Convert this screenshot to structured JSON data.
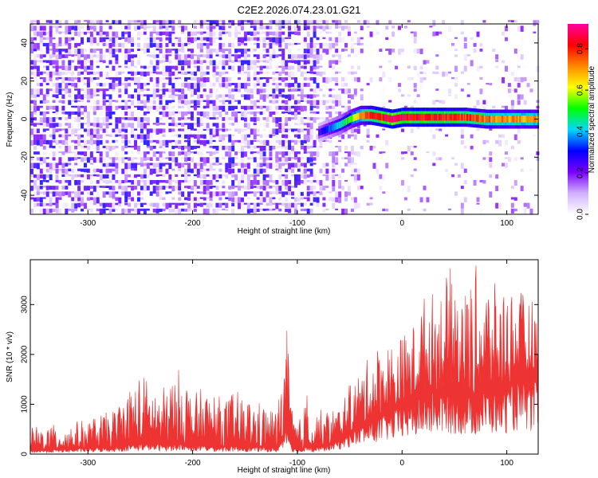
{
  "title": "C2E2.2026.074.23.01.G21",
  "chart_data": [
    {
      "type": "heatmap",
      "xlabel": "Height of straight line (km)",
      "ylabel": "Frequency (Hz)",
      "xlim": [
        -355,
        130
      ],
      "ylim": [
        -50,
        50
      ],
      "x_ticks": [
        -300,
        -200,
        -100,
        0,
        100
      ],
      "y_ticks": [
        -40,
        -20,
        0,
        20,
        40
      ],
      "colorbar": {
        "label": "Normalized spectral amplitude",
        "range": [
          0,
          0.92
        ],
        "ticks": [
          0,
          0.2,
          0.4,
          0.6,
          0.8
        ],
        "colors": [
          "#ffffff",
          "#d0b0ff",
          "#7a00ff",
          "#0000ff",
          "#00d8ff",
          "#00ff00",
          "#ffff00",
          "#ff8800",
          "#ff0000",
          "#ff00a0"
        ]
      },
      "signal_track": [
        {
          "x": -80,
          "y": -7,
          "amp": 0.25
        },
        {
          "x": -70,
          "y": -5,
          "amp": 0.35
        },
        {
          "x": -60,
          "y": -3,
          "amp": 0.45
        },
        {
          "x": -50,
          "y": 0,
          "amp": 0.55
        },
        {
          "x": -40,
          "y": 2,
          "amp": 0.7
        },
        {
          "x": -30,
          "y": 2,
          "amp": 0.8
        },
        {
          "x": -20,
          "y": 1,
          "amp": 0.85
        },
        {
          "x": -10,
          "y": 0,
          "amp": 0.9
        },
        {
          "x": 0,
          "y": 1,
          "amp": 0.88
        },
        {
          "x": 20,
          "y": 1,
          "amp": 0.85
        },
        {
          "x": 40,
          "y": 1,
          "amp": 0.85
        },
        {
          "x": 60,
          "y": 1,
          "amp": 0.8
        },
        {
          "x": 80,
          "y": 0,
          "amp": 0.75
        },
        {
          "x": 100,
          "y": 0,
          "amp": 0.72
        },
        {
          "x": 130,
          "y": 0,
          "amp": 0.7
        }
      ],
      "background_noise_amplitude": 0.3
    },
    {
      "type": "line",
      "xlabel": "Height of straight line (km)",
      "ylabel": "SNR (10 * v/v)",
      "xlim": [
        -355,
        130
      ],
      "ylim": [
        0,
        3900
      ],
      "x_ticks": [
        -300,
        -200,
        -100,
        0,
        100
      ],
      "y_ticks": [
        0,
        1000,
        2000,
        3000
      ],
      "series": [
        {
          "color": "#ee3333",
          "x": [
            -355,
            -330,
            -300,
            -275,
            -260,
            -250,
            -240,
            -230,
            -220,
            -210,
            -200,
            -190,
            -180,
            -170,
            -160,
            -150,
            -140,
            -130,
            -120,
            -115,
            -110,
            -105,
            -100,
            -95,
            -90,
            -85,
            -80,
            -70,
            -60,
            -50,
            -40,
            -30,
            -20,
            -10,
            0,
            10,
            20,
            30,
            40,
            50,
            60,
            70,
            80,
            90,
            100,
            110,
            120,
            130
          ],
          "peak": [
            550,
            600,
            700,
            900,
            1400,
            1650,
            1500,
            1300,
            1550,
            1800,
            1200,
            1350,
            1250,
            1100,
            1300,
            1150,
            1100,
            1000,
            900,
            1500,
            2500,
            900,
            650,
            800,
            1400,
            700,
            900,
            900,
            1000,
            1400,
            1700,
            2000,
            2300,
            2300,
            2400,
            2600,
            3200,
            3300,
            3500,
            3900,
            3300,
            3800,
            3600,
            3400,
            3500,
            3300,
            3200,
            3000
          ],
          "base": [
            80,
            100,
            120,
            150,
            200,
            220,
            220,
            200,
            220,
            220,
            180,
            180,
            170,
            160,
            160,
            160,
            150,
            140,
            120,
            300,
            700,
            150,
            100,
            100,
            250,
            100,
            150,
            200,
            300,
            450,
            600,
            700,
            800,
            900,
            1000,
            1100,
            1200,
            1300,
            1300,
            1300,
            1200,
            1200,
            1300,
            1300,
            1400,
            1500,
            1500,
            1500
          ]
        }
      ]
    }
  ]
}
